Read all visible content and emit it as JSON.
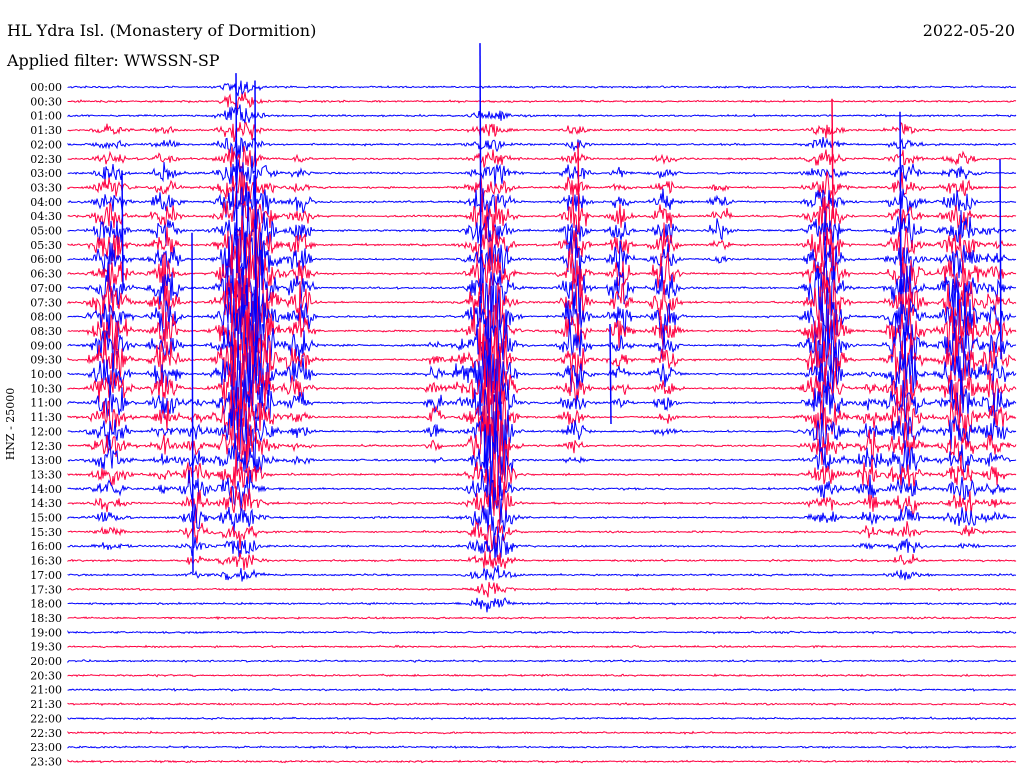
{
  "header": {
    "station": "HL Ydra Isl. (Monastery of Dormition)",
    "filter": "Applied filter: WWSSN-SP",
    "date": "2022-05-20"
  },
  "colors": {
    "trace_a": "#0000ff",
    "trace_b": "#ff0040",
    "background": "#ffffff",
    "text": "#000000"
  },
  "chart_data": {
    "type": "helicorder",
    "channel_label": "HNZ - 25000",
    "row_labels": [
      "00:00",
      "00:30",
      "01:00",
      "01:30",
      "02:00",
      "02:30",
      "03:00",
      "03:30",
      "04:00",
      "04:30",
      "05:00",
      "05:30",
      "06:00",
      "06:30",
      "07:00",
      "07:30",
      "08:00",
      "08:30",
      "09:00",
      "09:30",
      "10:00",
      "10:30",
      "11:00",
      "11:30",
      "12:00",
      "12:30",
      "13:00",
      "13:30",
      "14:00",
      "14:30",
      "15:00",
      "15:30",
      "16:00",
      "16:30",
      "17:00",
      "17:30",
      "18:00",
      "18:30",
      "19:00",
      "19:30",
      "20:00",
      "20:30",
      "21:00",
      "21:30",
      "22:00",
      "22:30",
      "23:00",
      "23:30"
    ],
    "row_interval_minutes": 30,
    "trace_colors_alternate": [
      "#0000ff",
      "#ff0040"
    ]
  }
}
